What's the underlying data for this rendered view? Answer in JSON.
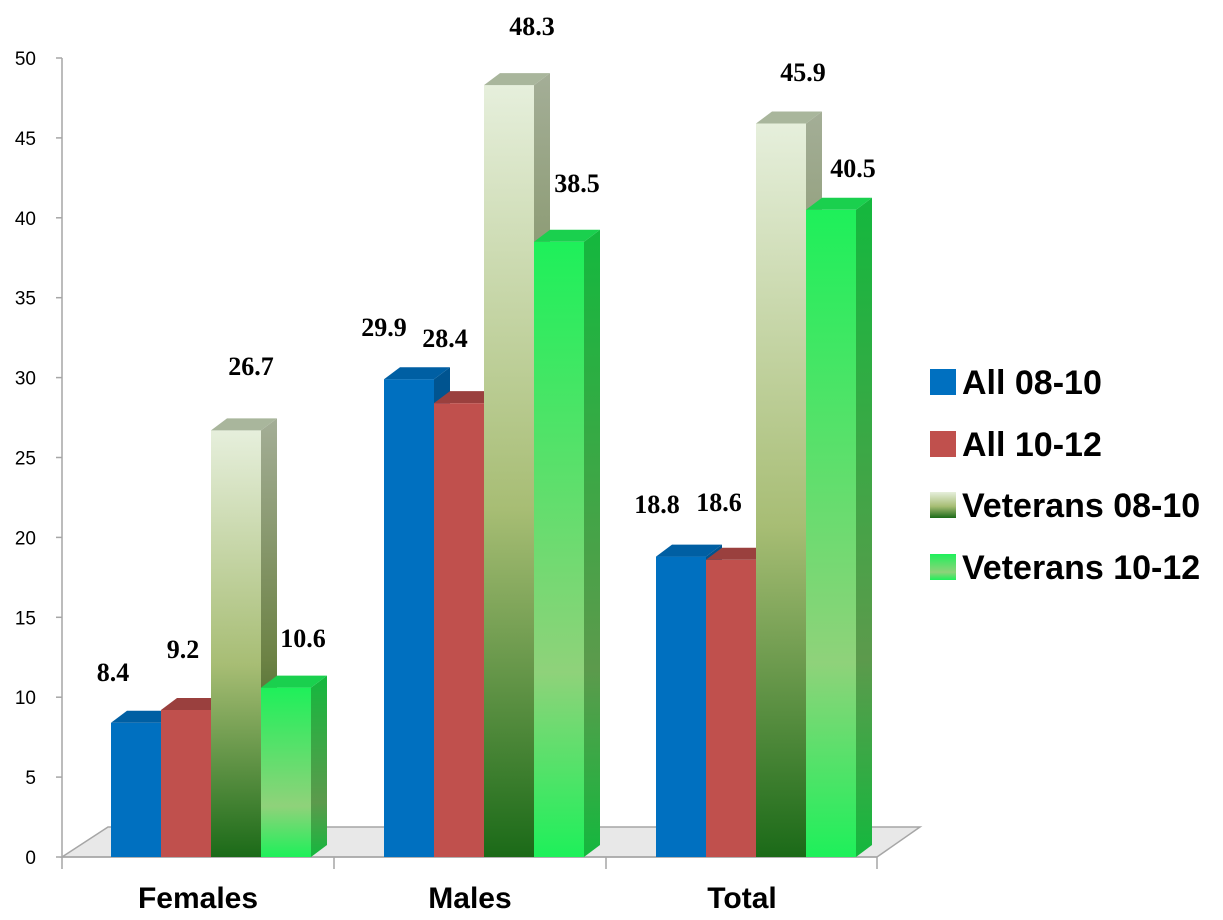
{
  "chart_data": {
    "type": "bar",
    "title": "",
    "xlabel": "",
    "ylabel": "",
    "categories": [
      "Females",
      "Males",
      "Total"
    ],
    "ylim": [
      0,
      50
    ],
    "yticks": [
      0,
      5,
      10,
      15,
      20,
      25,
      30,
      35,
      40,
      45,
      50
    ],
    "grid": false,
    "legend_position": "right",
    "series": [
      {
        "name": "All 08-10",
        "values": [
          8.4,
          29.9,
          18.8
        ],
        "color": "#0070c0"
      },
      {
        "name": "All 10-12",
        "values": [
          9.2,
          28.4,
          18.6
        ],
        "color": "#c0504d"
      },
      {
        "name": "Veterans 08-10",
        "values": [
          26.7,
          48.3,
          45.9
        ],
        "color": "#9bbb59"
      },
      {
        "name": "Veterans 10-12",
        "values": [
          10.6,
          38.5,
          40.5
        ],
        "color": "#1ef05a"
      }
    ],
    "data_labels": [
      [
        "8.4",
        "29.9",
        "18.8"
      ],
      [
        "9.2",
        "28.4",
        "18.6"
      ],
      [
        "26.7",
        "48.3",
        "45.9"
      ],
      [
        "10.6",
        "38.5",
        "40.5"
      ]
    ]
  }
}
